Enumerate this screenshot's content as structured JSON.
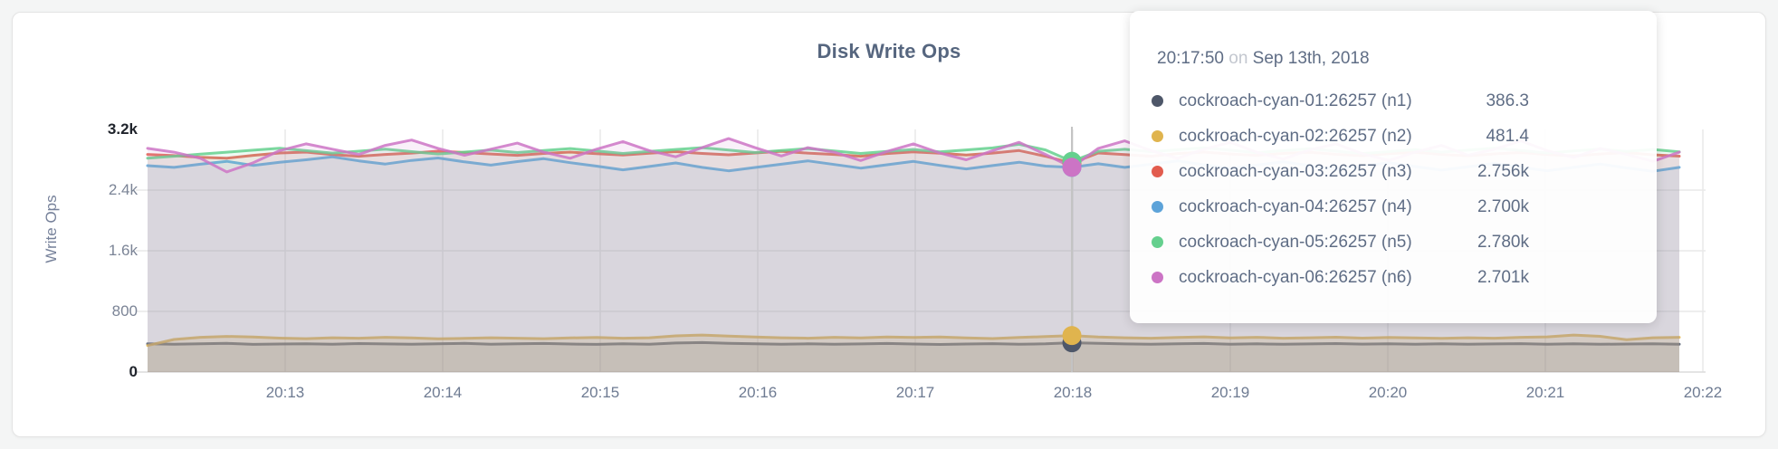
{
  "card": {
    "title": "Disk Write Ops"
  },
  "tooltip": {
    "time": "20:17:50",
    "conjunction": "on",
    "date": "Sep 13th, 2018",
    "rows": [
      {
        "name": "cockroach-cyan-01:26257 (n1)",
        "value": "386.3",
        "color": "#4e5769"
      },
      {
        "name": "cockroach-cyan-02:26257 (n2)",
        "value": "481.4",
        "color": "#e0b44e"
      },
      {
        "name": "cockroach-cyan-03:26257 (n3)",
        "value": "2.756k",
        "color": "#e25c4e"
      },
      {
        "name": "cockroach-cyan-04:26257 (n4)",
        "value": "2.700k",
        "color": "#5da3d9"
      },
      {
        "name": "cockroach-cyan-05:26257 (n5)",
        "value": "2.780k",
        "color": "#65d08e"
      },
      {
        "name": "cockroach-cyan-06:26257 (n6)",
        "value": "2.701k",
        "color": "#cc74c5"
      }
    ]
  },
  "chart_data": {
    "type": "area",
    "title": "Disk Write Ops",
    "ylabel": "Write Ops",
    "xlabel": "",
    "ylim": [
      0,
      3200
    ],
    "grid": true,
    "legend_position": "tooltip",
    "yticks": [
      {
        "value": 0,
        "label": "0",
        "edge": true
      },
      {
        "value": 800,
        "label": "800",
        "edge": false
      },
      {
        "value": 1600,
        "label": "1.6k",
        "edge": false
      },
      {
        "value": 2400,
        "label": "2.4k",
        "edge": false
      },
      {
        "value": 3200,
        "label": "3.2k",
        "edge": true
      }
    ],
    "xticks": [
      "20:13",
      "20:14",
      "20:15",
      "20:16",
      "20:17",
      "20:18",
      "20:19",
      "20:20",
      "20:21",
      "20:22"
    ],
    "x_start_time": "20:12:08",
    "x_end_time": "20:21:51",
    "sample_interval_seconds": 10,
    "hover_index": 35,
    "hover_time": "20:17:50",
    "series": [
      {
        "name": "cockroach-cyan-01:26257 (n1)",
        "color": "#4e5769",
        "fill_opacity": 0.16,
        "values": [
          372,
          368,
          372,
          378,
          365,
          370,
          374,
          368,
          376,
          371,
          366,
          373,
          379,
          368,
          372,
          377,
          370,
          365,
          372,
          368,
          383,
          389,
          380,
          374,
          368,
          372,
          366,
          371,
          377,
          370,
          364,
          370,
          375,
          368,
          373,
          386.3,
          378,
          371,
          366,
          372,
          377,
          368,
          373,
          367,
          371,
          376,
          369,
          374,
          368,
          372,
          366,
          371,
          375,
          368,
          372,
          367,
          370,
          374,
          368
        ]
      },
      {
        "name": "cockroach-cyan-02:26257 (n2)",
        "color": "#e0b44e",
        "fill_opacity": 0.22,
        "values": [
          350,
          430,
          458,
          470,
          462,
          448,
          441,
          452,
          446,
          458,
          450,
          438,
          444,
          452,
          446,
          440,
          450,
          457,
          446,
          452,
          478,
          488,
          474,
          462,
          452,
          446,
          458,
          450,
          462,
          456,
          462,
          450,
          442,
          456,
          468,
          481.4,
          462,
          452,
          446,
          456,
          464,
          450,
          458,
          446,
          452,
          460,
          448,
          456,
          450,
          444,
          452,
          446,
          458,
          465,
          488,
          472,
          428,
          452,
          458
        ]
      },
      {
        "name": "cockroach-cyan-03:26257 (n3)",
        "color": "#e25c4e",
        "fill_opacity": 0.11,
        "values": [
          2870,
          2855,
          2834,
          2822,
          2858,
          2890,
          2902,
          2868,
          2846,
          2870,
          2888,
          2914,
          2896,
          2876,
          2858,
          2884,
          2902,
          2880,
          2862,
          2886,
          2908,
          2884,
          2866,
          2890,
          2912,
          2888,
          2870,
          2846,
          2882,
          2904,
          2886,
          2862,
          2888,
          2922,
          2846,
          2756,
          2890,
          2868,
          2846,
          2882,
          2902,
          2876,
          2858,
          2884,
          2900,
          2872,
          2854,
          2880,
          2898,
          2870,
          2852,
          2878,
          2896,
          2868,
          2850,
          2876,
          2894,
          2866,
          2848
        ]
      },
      {
        "name": "cockroach-cyan-04:26257 (n4)",
        "color": "#5da3d9",
        "fill_opacity": 0.11,
        "values": [
          2722,
          2700,
          2742,
          2780,
          2726,
          2768,
          2800,
          2838,
          2786,
          2744,
          2792,
          2824,
          2772,
          2730,
          2776,
          2814,
          2762,
          2716,
          2668,
          2712,
          2758,
          2700,
          2654,
          2698,
          2742,
          2786,
          2738,
          2690,
          2734,
          2778,
          2726,
          2680,
          2724,
          2768,
          2716,
          2700,
          2748,
          2700,
          2742,
          2786,
          2734,
          2688,
          2730,
          2774,
          2722,
          2676,
          2718,
          2762,
          2710,
          2664,
          2708,
          2752,
          2700,
          2656,
          2700,
          2744,
          2692,
          2648,
          2700
        ]
      },
      {
        "name": "cockroach-cyan-05:26257 (n5)",
        "color": "#65d08e",
        "fill_opacity": 0.11,
        "values": [
          2820,
          2846,
          2874,
          2900,
          2926,
          2952,
          2920,
          2888,
          2914,
          2940,
          2908,
          2876,
          2902,
          2928,
          2896,
          2922,
          2948,
          2916,
          2884,
          2910,
          2936,
          2960,
          2928,
          2896,
          2922,
          2948,
          2916,
          2884,
          2910,
          2936,
          2904,
          2930,
          2956,
          3004,
          2930,
          2780,
          2912,
          2938,
          2906,
          2932,
          2958,
          2926,
          2894,
          2920,
          2946,
          2914,
          2882,
          2908,
          2934,
          2902,
          2928,
          2954,
          2922,
          2890,
          2916,
          2942,
          2910,
          2936,
          2904
        ]
      },
      {
        "name": "cockroach-cyan-06:26257 (n6)",
        "color": "#cc74c5",
        "fill_opacity": 0.11,
        "values": [
          2950,
          2900,
          2820,
          2640,
          2760,
          2920,
          3010,
          2940,
          2870,
          2990,
          3060,
          2950,
          2860,
          2940,
          3020,
          2900,
          2820,
          2940,
          3040,
          2920,
          2840,
          2960,
          3080,
          2960,
          2850,
          2960,
          2900,
          2790,
          2910,
          3010,
          2890,
          2800,
          2920,
          3030,
          2870,
          2701,
          2950,
          3050,
          2920,
          2820,
          2940,
          3030,
          2900,
          2810,
          2930,
          3010,
          2880,
          2790,
          2900,
          2990,
          2860,
          2940,
          3050,
          2920,
          2830,
          2950,
          2870,
          2780,
          2900
        ]
      }
    ]
  }
}
